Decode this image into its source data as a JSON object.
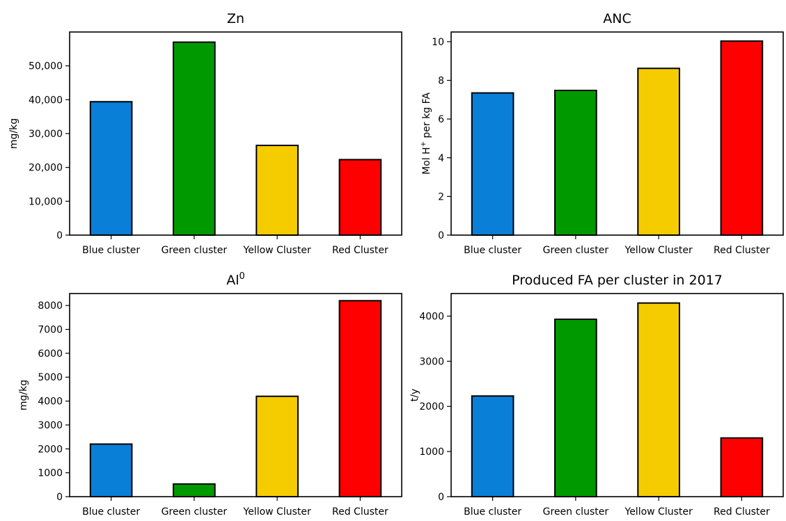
{
  "chart_data": [
    {
      "type": "bar",
      "title": "Zn",
      "title_sup": "",
      "ylabel": "mg/kg",
      "ylabel_sup": "",
      "ylabel_tail": "",
      "categories": [
        "Blue cluster",
        "Green cluster",
        "Yellow Cluster",
        "Red Cluster"
      ],
      "values": [
        39400,
        57000,
        26500,
        22300
      ],
      "colors": [
        "#0a7fd8",
        "#009a00",
        "#f5cc00",
        "#ff0000"
      ],
      "ylim": [
        0,
        60000
      ],
      "yticks": [
        0,
        10000,
        20000,
        30000,
        40000,
        50000
      ],
      "ytick_labels": [
        "0",
        "10,000",
        "20,000",
        "30,000",
        "40,000",
        "50,000"
      ],
      "grid": false,
      "legend": "none"
    },
    {
      "type": "bar",
      "title": "ANC",
      "title_sup": "",
      "ylabel": "Mol H",
      "ylabel_sup": "+",
      "ylabel_tail": " per kg FA",
      "categories": [
        "Blue cluster",
        "Green cluster",
        "Yellow Cluster",
        "Red Cluster"
      ],
      "values": [
        7.35,
        7.48,
        8.62,
        10.03
      ],
      "colors": [
        "#0a7fd8",
        "#009a00",
        "#f5cc00",
        "#ff0000"
      ],
      "ylim": [
        0,
        10.5
      ],
      "yticks": [
        0,
        2,
        4,
        6,
        8,
        10
      ],
      "ytick_labels": [
        "0",
        "2",
        "4",
        "6",
        "8",
        "10"
      ],
      "grid": false,
      "legend": "none"
    },
    {
      "type": "bar",
      "title": "Al",
      "title_sup": "0",
      "ylabel": "mg/kg",
      "ylabel_sup": "",
      "ylabel_tail": "",
      "categories": [
        "Blue cluster",
        "Green cluster",
        "Yellow Cluster",
        "Red Cluster"
      ],
      "values": [
        2200,
        530,
        4200,
        8200
      ],
      "colors": [
        "#0a7fd8",
        "#009a00",
        "#f5cc00",
        "#ff0000"
      ],
      "ylim": [
        0,
        8500
      ],
      "yticks": [
        0,
        1000,
        2000,
        3000,
        4000,
        5000,
        6000,
        7000,
        8000
      ],
      "ytick_labels": [
        "0",
        "1000",
        "2000",
        "3000",
        "4000",
        "5000",
        "6000",
        "7000",
        "8000"
      ],
      "grid": false,
      "legend": "none"
    },
    {
      "type": "bar",
      "title": "Produced FA per cluster in 2017",
      "title_sup": "",
      "ylabel": "t/y",
      "ylabel_sup": "",
      "ylabel_tail": "",
      "categories": [
        "Blue cluster",
        "Green cluster",
        "Yellow Cluster",
        "Red Cluster"
      ],
      "values": [
        2230,
        3930,
        4290,
        1300
      ],
      "colors": [
        "#0a7fd8",
        "#009a00",
        "#f5cc00",
        "#ff0000"
      ],
      "ylim": [
        0,
        4500
      ],
      "yticks": [
        0,
        1000,
        2000,
        3000,
        4000
      ],
      "ytick_labels": [
        "0",
        "1000",
        "2000",
        "3000",
        "4000"
      ],
      "grid": false,
      "legend": "none"
    }
  ]
}
